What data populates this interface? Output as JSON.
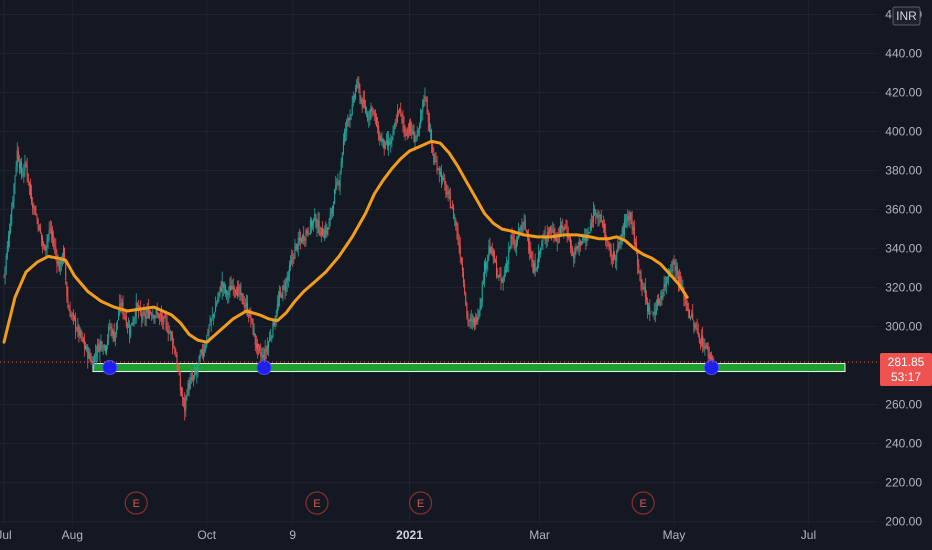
{
  "chart_data": {
    "type": "candlestick",
    "currency": "INR",
    "y_axis": {
      "ticks": [
        "200.00",
        "220.00",
        "240.00",
        "260.00",
        "300.00",
        "320.00",
        "340.00",
        "360.00",
        "380.00",
        "400.00",
        "420.00",
        "440.00",
        "460.00"
      ],
      "tick_values": [
        200,
        220,
        240,
        260,
        300,
        320,
        340,
        360,
        380,
        400,
        420,
        440,
        460
      ],
      "range": [
        191,
        470
      ]
    },
    "x_axis": {
      "labels": [
        {
          "text": "Jul",
          "day": 0,
          "bold": false
        },
        {
          "text": "Aug",
          "day": 31,
          "bold": false
        },
        {
          "text": "Oct",
          "day": 92,
          "bold": false
        },
        {
          "text": "9",
          "day": 131,
          "bold": false
        },
        {
          "text": "2021",
          "day": 184,
          "bold": true
        },
        {
          "text": "Mar",
          "day": 243,
          "bold": false
        },
        {
          "text": "May",
          "day": 304,
          "bold": false
        },
        {
          "text": "Jul",
          "day": 365,
          "bold": false
        }
      ]
    },
    "last_price": {
      "value": 281.85,
      "label": "281.85",
      "countdown": "53:17",
      "color": "#ef5350"
    },
    "moving_average": {
      "color": "#f39c1b",
      "points": [
        [
          0,
          292
        ],
        [
          5,
          315
        ],
        [
          10,
          328
        ],
        [
          15,
          333
        ],
        [
          20,
          336
        ],
        [
          25,
          335
        ],
        [
          28,
          334
        ],
        [
          32,
          326
        ],
        [
          38,
          318
        ],
        [
          44,
          313
        ],
        [
          50,
          310
        ],
        [
          56,
          308
        ],
        [
          62,
          309
        ],
        [
          68,
          310
        ],
        [
          72,
          308
        ],
        [
          76,
          306
        ],
        [
          80,
          302
        ],
        [
          84,
          296
        ],
        [
          88,
          293
        ],
        [
          92,
          292
        ],
        [
          96,
          296
        ],
        [
          100,
          300
        ],
        [
          104,
          304
        ],
        [
          110,
          308
        ],
        [
          116,
          306
        ],
        [
          120,
          304
        ],
        [
          124,
          303
        ],
        [
          128,
          307
        ],
        [
          132,
          313
        ],
        [
          136,
          318
        ],
        [
          140,
          322
        ],
        [
          146,
          328
        ],
        [
          152,
          336
        ],
        [
          158,
          346
        ],
        [
          164,
          358
        ],
        [
          168,
          368
        ],
        [
          172,
          375
        ],
        [
          176,
          381
        ],
        [
          180,
          386
        ],
        [
          184,
          390
        ],
        [
          188,
          392
        ],
        [
          194,
          395
        ],
        [
          198,
          394
        ],
        [
          202,
          389
        ],
        [
          206,
          382
        ],
        [
          210,
          374
        ],
        [
          214,
          366
        ],
        [
          218,
          358
        ],
        [
          222,
          353
        ],
        [
          226,
          350
        ],
        [
          230,
          349
        ],
        [
          236,
          347
        ],
        [
          242,
          346
        ],
        [
          248,
          346
        ],
        [
          254,
          347
        ],
        [
          260,
          347
        ],
        [
          266,
          346
        ],
        [
          270,
          345
        ],
        [
          274,
          345
        ],
        [
          278,
          346
        ],
        [
          282,
          344
        ],
        [
          286,
          340
        ],
        [
          290,
          337
        ],
        [
          294,
          335
        ],
        [
          298,
          332
        ],
        [
          302,
          327
        ],
        [
          306,
          322
        ],
        [
          310,
          315
        ]
      ]
    },
    "price_series": {
      "up_color": "#26a69a",
      "down_color": "#ef5350",
      "points": [
        [
          0,
          326
        ],
        [
          3,
          355
        ],
        [
          6,
          390
        ],
        [
          8,
          378
        ],
        [
          10,
          383
        ],
        [
          12,
          368
        ],
        [
          15,
          355
        ],
        [
          18,
          340
        ],
        [
          21,
          350
        ],
        [
          25,
          330
        ],
        [
          27,
          338
        ],
        [
          29,
          310
        ],
        [
          32,
          302
        ],
        [
          35,
          294
        ],
        [
          38,
          286
        ],
        [
          40,
          282
        ],
        [
          42,
          288
        ],
        [
          44,
          292
        ],
        [
          46,
          290
        ],
        [
          48,
          300
        ],
        [
          50,
          295
        ],
        [
          53,
          312
        ],
        [
          55,
          305
        ],
        [
          57,
          298
        ],
        [
          60,
          310
        ],
        [
          63,
          304
        ],
        [
          66,
          308
        ],
        [
          70,
          306
        ],
        [
          74,
          300
        ],
        [
          76,
          295
        ],
        [
          78,
          285
        ],
        [
          80,
          268
        ],
        [
          81,
          263
        ],
        [
          82,
          258
        ],
        [
          83,
          268
        ],
        [
          85,
          272
        ],
        [
          87,
          275
        ],
        [
          89,
          284
        ],
        [
          91,
          290
        ],
        [
          93,
          300
        ],
        [
          95,
          306
        ],
        [
          97,
          315
        ],
        [
          99,
          322
        ],
        [
          101,
          316
        ],
        [
          104,
          322
        ],
        [
          107,
          316
        ],
        [
          110,
          310
        ],
        [
          112,
          304
        ],
        [
          114,
          292
        ],
        [
          116,
          285
        ],
        [
          118,
          284
        ],
        [
          120,
          292
        ],
        [
          122,
          300
        ],
        [
          125,
          315
        ],
        [
          128,
          322
        ],
        [
          132,
          340
        ],
        [
          135,
          345
        ],
        [
          138,
          350
        ],
        [
          141,
          355
        ],
        [
          144,
          348
        ],
        [
          147,
          350
        ],
        [
          150,
          368
        ],
        [
          152,
          375
        ],
        [
          154,
          395
        ],
        [
          156,
          407
        ],
        [
          158,
          412
        ],
        [
          160,
          425
        ],
        [
          162,
          416
        ],
        [
          165,
          408
        ],
        [
          167,
          413
        ],
        [
          170,
          398
        ],
        [
          173,
          392
        ],
        [
          176,
          395
        ],
        [
          179,
          412
        ],
        [
          182,
          400
        ],
        [
          184,
          402
        ],
        [
          186,
          397
        ],
        [
          188,
          398
        ],
        [
          190,
          414
        ],
        [
          191,
          420
        ],
        [
          193,
          402
        ],
        [
          195,
          385
        ],
        [
          197,
          382
        ],
        [
          199,
          375
        ],
        [
          201,
          368
        ],
        [
          203,
          362
        ],
        [
          205,
          352
        ],
        [
          207,
          338
        ],
        [
          209,
          320
        ],
        [
          210,
          305
        ],
        [
          212,
          301
        ],
        [
          214,
          303
        ],
        [
          216,
          312
        ],
        [
          218,
          330
        ],
        [
          220,
          340
        ],
        [
          222,
          336
        ],
        [
          224,
          326
        ],
        [
          226,
          322
        ],
        [
          228,
          332
        ],
        [
          230,
          345
        ],
        [
          232,
          340
        ],
        [
          234,
          350
        ],
        [
          236,
          352
        ],
        [
          238,
          345
        ],
        [
          240,
          328
        ],
        [
          242,
          334
        ],
        [
          244,
          342
        ],
        [
          246,
          348
        ],
        [
          248,
          350
        ],
        [
          251,
          346
        ],
        [
          254,
          352
        ],
        [
          256,
          348
        ],
        [
          258,
          336
        ],
        [
          260,
          340
        ],
        [
          262,
          345
        ],
        [
          264,
          344
        ],
        [
          266,
          350
        ],
        [
          268,
          362
        ],
        [
          270,
          355
        ],
        [
          272,
          352
        ],
        [
          274,
          340
        ],
        [
          276,
          335
        ],
        [
          278,
          338
        ],
        [
          280,
          345
        ],
        [
          282,
          355
        ],
        [
          284,
          358
        ],
        [
          286,
          345
        ],
        [
          288,
          330
        ],
        [
          290,
          320
        ],
        [
          292,
          310
        ],
        [
          294,
          306
        ],
        [
          296,
          310
        ],
        [
          298,
          316
        ],
        [
          300,
          322
        ],
        [
          302,
          330
        ],
        [
          304,
          333
        ],
        [
          306,
          325
        ],
        [
          308,
          318
        ],
        [
          310,
          310
        ],
        [
          312,
          304
        ],
        [
          314,
          298
        ],
        [
          316,
          294
        ],
        [
          318,
          290
        ],
        [
          320,
          285
        ],
        [
          322,
          282
        ]
      ]
    },
    "support_level": {
      "value": 279,
      "color": "#1e9e2e"
    },
    "markers": [
      {
        "day": 48,
        "value": 279
      },
      {
        "day": 118,
        "value": 279
      },
      {
        "day": 321,
        "value": 279
      }
    ],
    "events": [
      {
        "day": 60,
        "label": "E"
      },
      {
        "day": 142,
        "label": "E"
      },
      {
        "day": 189,
        "label": "E"
      },
      {
        "day": 290,
        "label": "E"
      }
    ]
  }
}
